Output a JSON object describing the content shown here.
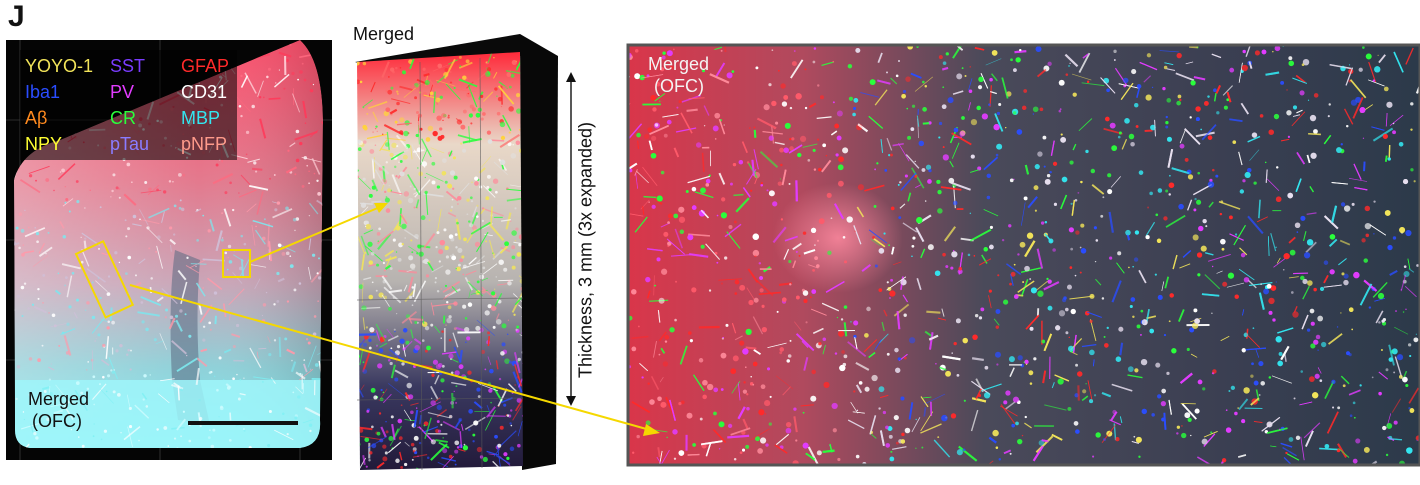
{
  "panel_letter": "J",
  "legend": {
    "channels": [
      {
        "name": "YOYO-1",
        "color": "#f2e45a"
      },
      {
        "name": "SST",
        "color": "#7a3cff"
      },
      {
        "name": "GFAP",
        "color": "#ff2a2a"
      },
      {
        "name": "Iba1",
        "color": "#2a4dff"
      },
      {
        "name": "PV",
        "color": "#e23cff"
      },
      {
        "name": "CD31",
        "color": "#ffffff"
      },
      {
        "name": "Aβ",
        "color": "#ff8a1f"
      },
      {
        "name": "CR",
        "color": "#2aff3c"
      },
      {
        "name": "MBP",
        "color": "#33e6f0"
      },
      {
        "name": "NPY",
        "color": "#ffff33"
      },
      {
        "name": "pTau",
        "color": "#8a7cff"
      },
      {
        "name": "pNFP",
        "color": "#ff9a8a"
      }
    ]
  },
  "left_panel": {
    "caption_line1": "Merged",
    "caption_line2": "(OFC)"
  },
  "middle_panel": {
    "caption": "Merged"
  },
  "right_panel": {
    "caption_line1": "Merged",
    "caption_line2": "(OFC)"
  },
  "thickness_label": "Thickness, 3 mm (3x expanded)",
  "colors": {
    "callout": "#f5d800",
    "scale_bar": "#111111",
    "frame": "#555555"
  }
}
